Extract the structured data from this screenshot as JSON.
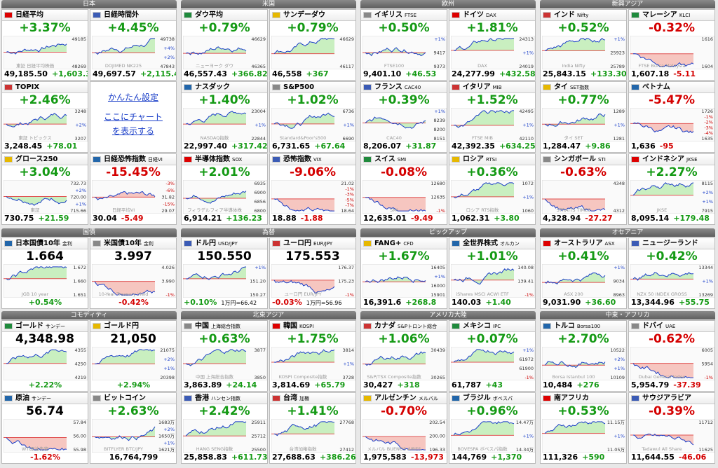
{
  "groups": [
    {
      "title": "日本",
      "tiles": [
        {
          "name": "日経平均",
          "top": "+3.37%",
          "axis": [
            "49185",
            "48269"
          ],
          "caption": "東証 日経平均株価",
          "bottom": [
            "49,185.50",
            "+1,603.35"
          ]
        },
        {
          "name": "日経時間外",
          "top": "+4.45%",
          "axis": [
            "49738",
            "+4%",
            "+2%",
            "47843"
          ],
          "caption": "DOJIMED NK225",
          "bottom": [
            "49,697.57",
            "+2,115.42"
          ]
        },
        {
          "name": "TOPIX",
          "top": "+2.46%",
          "axis": [
            "3248",
            "+2%",
            "3207"
          ],
          "caption": "東証 トピックス",
          "bottom": [
            "3,248.45",
            "+78.01"
          ]
        },
        {
          "links": [
            "かんたん設定",
            "ここにチャートを表示する"
          ]
        },
        {
          "name": "グロース250",
          "top": "+3.04%",
          "axis": [
            "732.73",
            "+2%",
            "720.00",
            "+1%",
            "715.66"
          ],
          "caption": "東証",
          "bottom": [
            "730.75",
            "+21.59"
          ]
        },
        {
          "name": "日経恐怖指数",
          "sub": "日経VI",
          "top": "-15.45%",
          "axis": [
            "-3%",
            "-6%",
            "31.82",
            "-15%",
            "29.07"
          ],
          "caption": "日経平均VI",
          "bottom": [
            "30.04",
            "-5.49"
          ]
        }
      ]
    },
    {
      "title": "米国",
      "tiles": [
        {
          "name": "ダウ平均",
          "top": "+0.79%",
          "axis": [
            "46629",
            "46365"
          ],
          "caption": "ニューヨーク ダウ",
          "bottom": [
            "46,557.43",
            "+366.82"
          ]
        },
        {
          "name": "サンデーダウ",
          "top": "+0.79%",
          "axis": [
            "46629",
            "46117"
          ],
          "bottom": [
            "46,558",
            "+367"
          ]
        },
        {
          "name": "ナスダック",
          "top": "+1.40%",
          "axis": [
            "23004",
            "+1%",
            "22844"
          ],
          "caption": "NASDAQ指数",
          "bottom": [
            "22,997.40",
            "+317.42"
          ]
        },
        {
          "name": "S&P500",
          "top": "+1.02%",
          "axis": [
            "6736",
            "+1%",
            "6690"
          ],
          "caption": "Standard&Poor's500",
          "bottom": [
            "6,731.65",
            "+67.64"
          ]
        },
        {
          "name": "半導体指数",
          "sub": "SOX",
          "top": "+2.01%",
          "axis": [
            "6935",
            "6900",
            "6856",
            "6800"
          ],
          "caption": "フィラデルフィア半導体株",
          "bottom": [
            "6,914.21",
            "+136.23"
          ]
        },
        {
          "name": "恐怖指数",
          "sub": "VIX",
          "top": "-9.06%",
          "axis": [
            "21.02",
            "-1%",
            "-3%",
            "-5%",
            "-7%",
            "18.64"
          ],
          "bottom": [
            "18.88",
            "-1.88"
          ]
        }
      ]
    },
    {
      "title": "欧州",
      "tiles": [
        {
          "name": "イギリス",
          "sub": "FTSE",
          "top": "+0.50%",
          "axis": [
            "+1%",
            "9417",
            "9373"
          ],
          "caption": "FTSE100",
          "bottom": [
            "9,401.10",
            "+46.53"
          ]
        },
        {
          "name": "ドイツ",
          "sub": "DAX",
          "top": "+1.81%",
          "axis": [
            "24313",
            "+1%",
            "24019"
          ],
          "caption": "DAX",
          "bottom": [
            "24,277.99",
            "+432.58"
          ]
        },
        {
          "name": "フランス",
          "sub": "CAC40",
          "top": "+0.39%",
          "axis": [
            "+1%",
            "8239",
            "8200",
            "8151"
          ],
          "caption": "CAC40",
          "bottom": [
            "8,206.07",
            "+31.87"
          ]
        },
        {
          "name": "イタリア",
          "sub": "MIB",
          "top": "+1.52%",
          "axis": [
            "42495",
            "+1%",
            "42110"
          ],
          "caption": "FTSE MIB",
          "bottom": [
            "42,392.35",
            "+634.25"
          ]
        },
        {
          "name": "スイス",
          "sub": "SMI",
          "top": "-0.08%",
          "axis": [
            "12680",
            "12635",
            "-1%"
          ],
          "caption": "SMI",
          "bottom": [
            "12,635.01",
            "-9.49"
          ]
        },
        {
          "name": "ロシア",
          "sub": "RTSI",
          "top": "+0.36%",
          "axis": [
            "1072",
            "+1%",
            "1060"
          ],
          "caption": "ロシア RTS指数",
          "bottom": [
            "1,062.31",
            "+3.80"
          ]
        }
      ]
    },
    {
      "title": "新興アジア",
      "tiles": [
        {
          "name": "インド",
          "sub": "Nifty",
          "top": "+0.52%",
          "axis": [
            "+1%",
            "25923",
            "25789"
          ],
          "caption": "India Nifty",
          "bottom": [
            "25,843.15",
            "+133.30"
          ]
        },
        {
          "name": "マレーシア",
          "sub": "KLCI",
          "top": "-0.32%",
          "axis": [
            "1616",
            "1604"
          ],
          "caption": "FTSE Bursa Malaysia",
          "bottom": [
            "1,607.18",
            "-5.11"
          ]
        },
        {
          "name": "タイ",
          "sub": "SET指数",
          "top": "+0.77%",
          "axis": [
            "1289",
            "+1%",
            "1281"
          ],
          "caption": "タイ SET",
          "bottom": [
            "1,284.47",
            "+9.86"
          ]
        },
        {
          "name": "ベトナム",
          "top": "-5.47%",
          "axis": [
            "1726",
            "-1%",
            "-2%",
            "-3%",
            "-4%",
            "1635"
          ],
          "bottom": [
            "1,636",
            "-95"
          ]
        },
        {
          "name": "シンガポール",
          "sub": "STI",
          "top": "-0.63%",
          "axis": [
            "4348",
            "4312"
          ],
          "caption": "STRAITS TIMES",
          "bottom": [
            "4,328.94",
            "-27.27"
          ]
        },
        {
          "name": "インドネシア",
          "sub": "JKSE",
          "top": "+2.27%",
          "axis": [
            "8115",
            "+2%",
            "+1%",
            "7915"
          ],
          "caption": "JKSE",
          "bottom": [
            "8,095.14",
            "+179.48"
          ]
        }
      ]
    },
    {
      "title": "国債",
      "tiles": [
        {
          "name": "日本国債10年",
          "sub": "金利",
          "top": "1.664",
          "axis": [
            "1.672",
            "1.660",
            "1.651"
          ],
          "caption": "JGB 10 year",
          "bottom": [
            "+0.54%"
          ]
        },
        {
          "name": "米国債10年",
          "sub": "金利",
          "top": "3.997",
          "axis": [
            "4.026",
            "3.990",
            "-1%"
          ],
          "caption": "10-Year Treasury Yield",
          "bottom": [
            "-0.42%"
          ]
        }
      ]
    },
    {
      "title": "為替",
      "tiles": [
        {
          "name": "ドル円",
          "sub": "USD/JPY",
          "top": "150.550",
          "axis": [
            "+1%",
            "151.20",
            "150.27"
          ],
          "bottom": [
            "+0.10%",
            "1万円=66.42"
          ]
        },
        {
          "name": "ユーロ円",
          "sub": "EUR/JPY",
          "top": "175.553",
          "axis": [
            "176.37",
            "175.23",
            "-1%"
          ],
          "caption": "ユーロ円 EUR/JPY",
          "bottom": [
            "-0.03%",
            "1万円=56.96"
          ]
        }
      ]
    },
    {
      "title": "ピックアップ",
      "tiles": [
        {
          "name": "FANG+",
          "sub": "CFD",
          "top": "+1.67%",
          "axis": [
            "16405",
            "+1%",
            "16000",
            "15901"
          ],
          "bottom": [
            "16,391.6",
            "+268.8"
          ]
        },
        {
          "name": "全世界株式",
          "sub": "オルカン",
          "top": "+1.01%",
          "axis": [
            "140.08",
            "139.41",
            "-1%"
          ],
          "caption": "iShares MSCI ACWI ETF",
          "bottom": [
            "140.03",
            "+1.40"
          ]
        }
      ]
    },
    {
      "title": "オセアニア",
      "tiles": [
        {
          "name": "オーストラリア",
          "sub": "ASX",
          "top": "+0.41%",
          "axis": [
            "+1%",
            "9034",
            "8963"
          ],
          "caption": "ASX 200",
          "bottom": [
            "9,031.90",
            "+36.60"
          ]
        },
        {
          "name": "ニュージーランド",
          "top": "+0.42%",
          "axis": [
            "13344",
            "+1%",
            "13269"
          ],
          "caption": "NZX 50 INDEX GROSS",
          "bottom": [
            "13,344.96",
            "+55.75"
          ]
        }
      ]
    },
    {
      "title": "コモディティ",
      "tiles": [
        {
          "name": "ゴールド",
          "sub": "サンデー",
          "top": "4,348.98",
          "axis": [
            "4355",
            "4250",
            "4219"
          ],
          "bottom": [
            "+2.22%"
          ]
        },
        {
          "name": "ゴールド円",
          "top": "21,050",
          "axis": [
            "21075",
            "+2%",
            "+1%",
            "20398"
          ],
          "bottom": [
            "+2.94%"
          ]
        },
        {
          "name": "原油",
          "sub": "サンデー",
          "top": "56.74",
          "axis": [
            "57.84",
            "56.00",
            "55.98"
          ],
          "caption": "WTI原油先物",
          "bottom": [
            "-1.62%"
          ]
        },
        {
          "name": "ビットコイン",
          "top": "+2.63%",
          "axis": [
            "1683万",
            "+2%",
            "1650万",
            "+1%",
            "1621万"
          ],
          "caption": "BITFLYER BTC/JPY",
          "bottom": [
            "16,764,799"
          ]
        }
      ]
    },
    {
      "title": "北東アジア",
      "tiles": [
        {
          "name": "中国",
          "sub": "上海総合指数",
          "top": "+0.63%",
          "axis": [
            "3877",
            "3850"
          ],
          "caption": "中国 上海総合指数",
          "bottom": [
            "3,863.89",
            "+24.14"
          ]
        },
        {
          "name": "韓国",
          "sub": "KOSPI",
          "top": "+1.75%",
          "axis": [
            "3814",
            "+1%",
            "3728"
          ],
          "caption": "KOSPI Composite指数",
          "bottom": [
            "3,814.69",
            "+65.79"
          ]
        },
        {
          "name": "香港",
          "sub": "ハンセン指数",
          "top": "+2.42%",
          "axis": [
            "25911",
            "25712",
            "25500"
          ],
          "caption": "HANG SENG指数",
          "bottom": [
            "25,858.83",
            "+611.73"
          ]
        },
        {
          "name": "台湾",
          "sub": "加権",
          "top": "+1.41%",
          "axis": [
            "27768",
            "27412"
          ],
          "caption": "台湾加権指数",
          "bottom": [
            "27,688.63",
            "+386.26"
          ]
        }
      ]
    },
    {
      "title": "アメリカ大陸",
      "tiles": [
        {
          "name": "カナダ",
          "sub": "S&Pトロント総合",
          "top": "+1.06%",
          "axis": [
            "30439",
            "30265"
          ],
          "caption": "S&P/TSX Composite指数",
          "bottom": [
            "30,427",
            "+318"
          ]
        },
        {
          "name": "メキシコ",
          "sub": "IPC",
          "top": "+0.07%",
          "axis": [
            "+1%",
            "61972",
            "61900",
            "-1%"
          ],
          "bottom": [
            "61,787",
            "+43"
          ]
        },
        {
          "name": "アルゼンチン",
          "sub": "メルバル",
          "top": "-0.70%",
          "axis": [
            "202.54",
            "200.00",
            "196.33"
          ],
          "caption": "メルバル BUENOS AIRES",
          "bottom": [
            "1,975,583",
            "-13,973"
          ]
        },
        {
          "name": "ブラジル",
          "sub": "ボベスパ",
          "top": "+0.96%",
          "axis": [
            "14.47万",
            "+1%",
            "14.34万"
          ],
          "caption": "BOVESPA ボベスパ指数",
          "bottom": [
            "144,769",
            "+1,370"
          ]
        }
      ]
    },
    {
      "title": "中東・アフリカ",
      "tiles": [
        {
          "name": "トルコ",
          "sub": "Borsa100",
          "top": "+2.70%",
          "axis": [
            "10522",
            "+2%",
            "+1%",
            "10109"
          ],
          "caption": "Borsa Istanbul 100",
          "bottom": [
            "10,484",
            "+276"
          ]
        },
        {
          "name": "ドバイ",
          "sub": "UAE",
          "top": "-0.62%",
          "axis": [
            "6005",
            "5954",
            "-1%"
          ],
          "caption": "Dubai General Index",
          "bottom": [
            "5,954.79",
            "-37.39"
          ]
        },
        {
          "name": "南アフリカ",
          "top": "+0.53%",
          "axis": [
            "11.15万",
            "+1%",
            "11.05万"
          ],
          "bottom": [
            "111,326",
            "+590"
          ]
        },
        {
          "name": "サウジアラビア",
          "top": "-0.39%",
          "axis": [
            "11712",
            "11625"
          ],
          "caption": "Tadawul All Share",
          "bottom": [
            "11,644.55",
            "-46.06"
          ]
        }
      ]
    }
  ]
}
